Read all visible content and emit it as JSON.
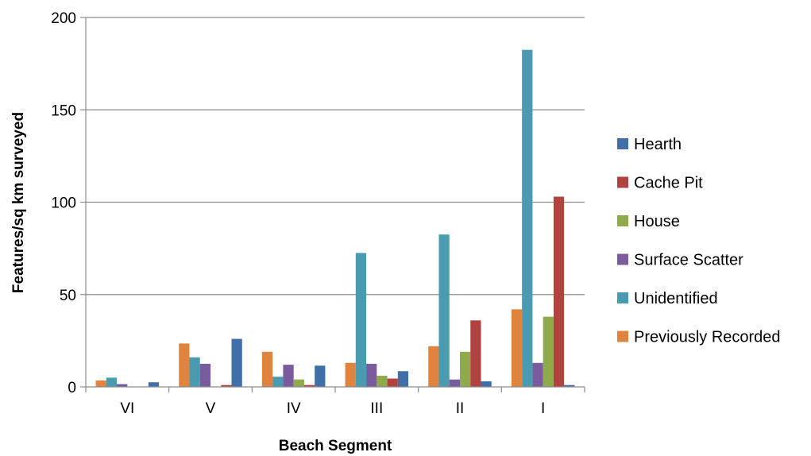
{
  "chart_data": {
    "type": "bar",
    "xlabel": "Beach Segment",
    "ylabel": "Features/sq km surveyed",
    "ylim": [
      0,
      200
    ],
    "yticks": [
      0,
      50,
      100,
      150,
      200
    ],
    "grid": true,
    "legend_position": "right",
    "categories": [
      "VI",
      "V",
      "IV",
      "III",
      "II",
      "I"
    ],
    "series": [
      {
        "name": "Previously Recorded",
        "color": "#E0843D",
        "values": [
          3.5,
          23.5,
          19,
          13,
          22,
          42
        ]
      },
      {
        "name": "Unidentified",
        "color": "#4A9BB0",
        "values": [
          5,
          16,
          5.5,
          72.5,
          82.5,
          182.5
        ]
      },
      {
        "name": "Surface Scatter",
        "color": "#7A5C9E",
        "values": [
          1.5,
          12.5,
          12,
          12.5,
          4,
          13
        ]
      },
      {
        "name": "House",
        "color": "#8EAA4B",
        "values": [
          0,
          0,
          4,
          6,
          19,
          38
        ]
      },
      {
        "name": "Cache Pit",
        "color": "#B0423F",
        "values": [
          0,
          1,
          1,
          4.5,
          36,
          103
        ]
      },
      {
        "name": "Hearth",
        "color": "#3F6EA8",
        "values": [
          2.5,
          26,
          11.5,
          8.5,
          3,
          1
        ]
      }
    ],
    "legend_order": [
      "Hearth",
      "Cache Pit",
      "House",
      "Surface Scatter",
      "Unidentified",
      "Previously Recorded"
    ]
  }
}
